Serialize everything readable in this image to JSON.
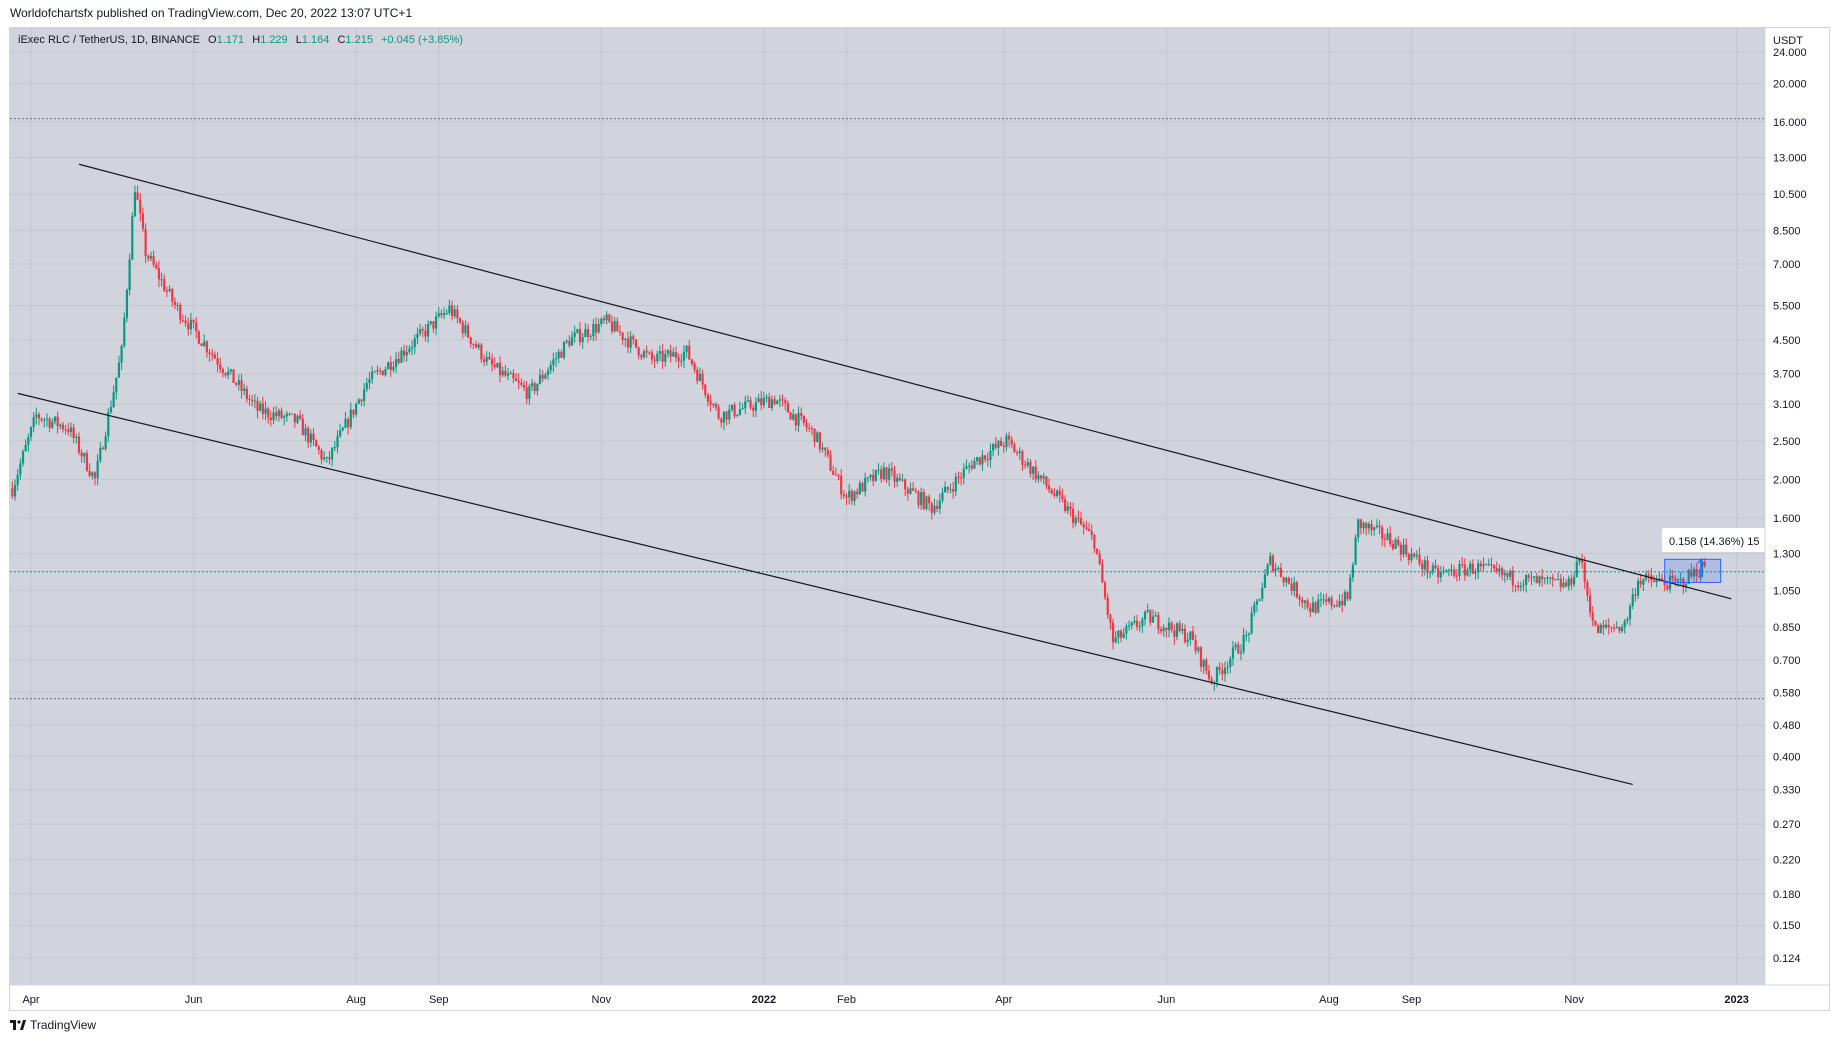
{
  "caption": "Worldofchartsfx published on TradingView.com, Dec 20, 2022 13:07 UTC+1",
  "legend": {
    "symbol": "iExec RLC / TetherUS, 1D, BINANCE",
    "o_label": "O",
    "o": "1.171",
    "h_label": "H",
    "h": "1.229",
    "l_label": "L",
    "l": "1.164",
    "c_label": "C",
    "c": "1.215",
    "change": "+0.045 (+3.85%)"
  },
  "measure_label": "0.158 (14.36%) 15",
  "footer": "TradingView",
  "colors": {
    "up": "#089981",
    "down": "#f23645",
    "bg": "#d1d4dc",
    "line": "#131722",
    "measure": "#2962ff"
  },
  "chart_data": {
    "type": "candlestick",
    "scale": "log",
    "title": "iExec RLC / TetherUS, 1D, BINANCE",
    "y_unit_label": "USDT",
    "y_ticks": [
      "24.000",
      "20.000",
      "16.000",
      "13.000",
      "10.500",
      "8.500",
      "7.000",
      "5.500",
      "4.500",
      "3.700",
      "3.100",
      "2.500",
      "2.000",
      "1.600",
      "1.300",
      "1.050",
      "0.850",
      "0.700",
      "0.580",
      "0.480",
      "0.400",
      "0.330",
      "0.270",
      "0.220",
      "0.180",
      "0.150",
      "0.124"
    ],
    "x_ticks": [
      "Apr",
      "Jun",
      "Aug",
      "Sep",
      "Nov",
      "2022",
      "Feb",
      "Apr",
      "Jun",
      "Aug",
      "Sep",
      "Nov",
      "2023"
    ],
    "ylim": [
      0.11,
      29
    ],
    "price_path": [
      [
        "2021-03-25",
        1.9
      ],
      [
        "2021-04-03",
        2.9
      ],
      [
        "2021-04-15",
        2.7
      ],
      [
        "2021-04-25",
        2.0
      ],
      [
        "2021-05-05",
        4.2
      ],
      [
        "2021-05-10",
        11.0
      ],
      [
        "2021-05-14",
        7.5
      ],
      [
        "2021-05-25",
        5.5
      ],
      [
        "2021-06-10",
        4.0
      ],
      [
        "2021-06-25",
        3.0
      ],
      [
        "2021-07-10",
        2.8
      ],
      [
        "2021-07-21",
        2.2
      ],
      [
        "2021-08-05",
        3.5
      ],
      [
        "2021-08-25",
        4.6
      ],
      [
        "2021-09-05",
        5.4
      ],
      [
        "2021-09-20",
        3.9
      ],
      [
        "2021-10-05",
        3.3
      ],
      [
        "2021-10-20",
        4.5
      ],
      [
        "2021-11-03",
        5.0
      ],
      [
        "2021-11-20",
        4.0
      ],
      [
        "2021-12-03",
        4.2
      ],
      [
        "2021-12-15",
        2.9
      ],
      [
        "2022-01-05",
        3.2
      ],
      [
        "2022-01-20",
        2.6
      ],
      [
        "2022-02-01",
        1.8
      ],
      [
        "2022-02-15",
        2.1
      ],
      [
        "2022-03-05",
        1.7
      ],
      [
        "2022-03-20",
        2.2
      ],
      [
        "2022-04-02",
        2.5
      ],
      [
        "2022-04-15",
        2.0
      ],
      [
        "2022-05-05",
        1.4
      ],
      [
        "2022-05-12",
        0.78
      ],
      [
        "2022-05-25",
        0.9
      ],
      [
        "2022-06-10",
        0.8
      ],
      [
        "2022-06-18",
        0.62
      ],
      [
        "2022-07-01",
        0.8
      ],
      [
        "2022-07-10",
        1.25
      ],
      [
        "2022-07-25",
        0.95
      ],
      [
        "2022-08-08",
        1.0
      ],
      [
        "2022-08-12",
        1.55
      ],
      [
        "2022-08-25",
        1.4
      ],
      [
        "2022-09-10",
        1.15
      ],
      [
        "2022-09-25",
        1.2
      ],
      [
        "2022-10-10",
        1.12
      ],
      [
        "2022-10-30",
        1.08
      ],
      [
        "2022-11-03",
        1.28
      ],
      [
        "2022-11-09",
        0.83
      ],
      [
        "2022-11-20",
        0.86
      ],
      [
        "2022-11-25",
        1.12
      ],
      [
        "2022-12-10",
        1.09
      ],
      [
        "2022-12-20",
        1.215
      ]
    ],
    "channel": {
      "upper_line": [
        [
          "2021-04-19",
          12.5
        ],
        [
          "2022-12-30",
          1.0
        ]
      ],
      "lower_line": [
        [
          "2021-03-27",
          3.3
        ],
        [
          "2022-11-23",
          0.34
        ]
      ]
    },
    "horizontal_levels": [
      16.3,
      1.17,
      0.56
    ],
    "measure": {
      "from": 1.1,
      "to": 1.258,
      "text": "0.158 (14.36%) 15"
    }
  }
}
